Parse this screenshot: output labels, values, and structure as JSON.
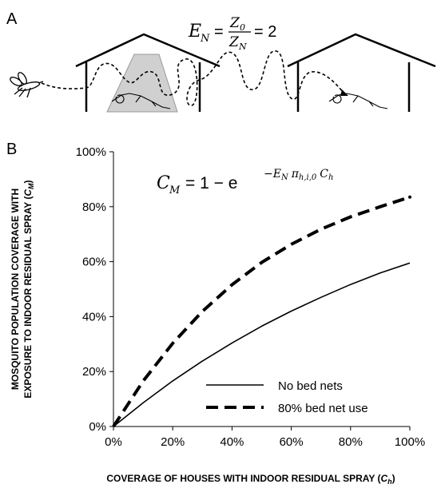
{
  "panel_a": {
    "letter": "A",
    "formula": {
      "lhs_base": "E",
      "lhs_sub": "N",
      "num_base": "Z",
      "num_sub": "0",
      "den_base": "Z",
      "den_sub": "N",
      "equals_value": "= 2"
    }
  },
  "panel_b": {
    "letter": "B",
    "formula": {
      "lhs_base": "C",
      "lhs_sub": "M",
      "rhs_prefix": "= 1 − e",
      "exp_minus": "−",
      "exp_E": "E",
      "exp_E_sub": "N",
      "exp_pi": "π",
      "exp_pi_sub": "h,i,0",
      "exp_C": "C",
      "exp_C_sub": "h"
    }
  },
  "chart_data": {
    "type": "line",
    "xlabel_main": "COVERAGE OF HOUSES WITH INDOOR RESIDUAL SPRAY (",
    "xlabel_var": "C",
    "xlabel_sub": "h",
    "xlabel_close": ")",
    "ylabel_line1": "MOSQUITO POPULATION COVERAGE WITH",
    "ylabel_line2_main": "EXPOSURE TO INDOOR RESIDUAL SPRAY (",
    "ylabel_var": "C",
    "ylabel_sub": "M",
    "ylabel_close": ")",
    "xlim": [
      0,
      100
    ],
    "ylim": [
      0,
      100
    ],
    "x_ticks": [
      0,
      20,
      40,
      60,
      80,
      100
    ],
    "y_ticks": [
      0,
      20,
      40,
      60,
      80,
      100
    ],
    "x_tick_labels": [
      "0%",
      "20%",
      "40%",
      "60%",
      "80%",
      "100%"
    ],
    "y_tick_labels": [
      "0%",
      "20%",
      "40%",
      "60%",
      "80%",
      "100%"
    ],
    "legend_position": "bottom-right",
    "series": [
      {
        "name": "No bed nets",
        "style": "solid",
        "x": [
          0,
          10,
          20,
          30,
          40,
          50,
          60,
          70,
          80,
          90,
          100
        ],
        "y": [
          0,
          8.6,
          16.6,
          23.8,
          30.4,
          36.5,
          42.0,
          47.0,
          51.7,
          55.9,
          59.5
        ]
      },
      {
        "name": "80% bed net use",
        "style": "dashed",
        "x": [
          0,
          10,
          20,
          30,
          40,
          50,
          60,
          70,
          80,
          90,
          100
        ],
        "y": [
          0,
          16.5,
          30.3,
          41.9,
          51.6,
          59.7,
          66.3,
          71.8,
          76.3,
          80.0,
          83.5
        ]
      }
    ]
  }
}
